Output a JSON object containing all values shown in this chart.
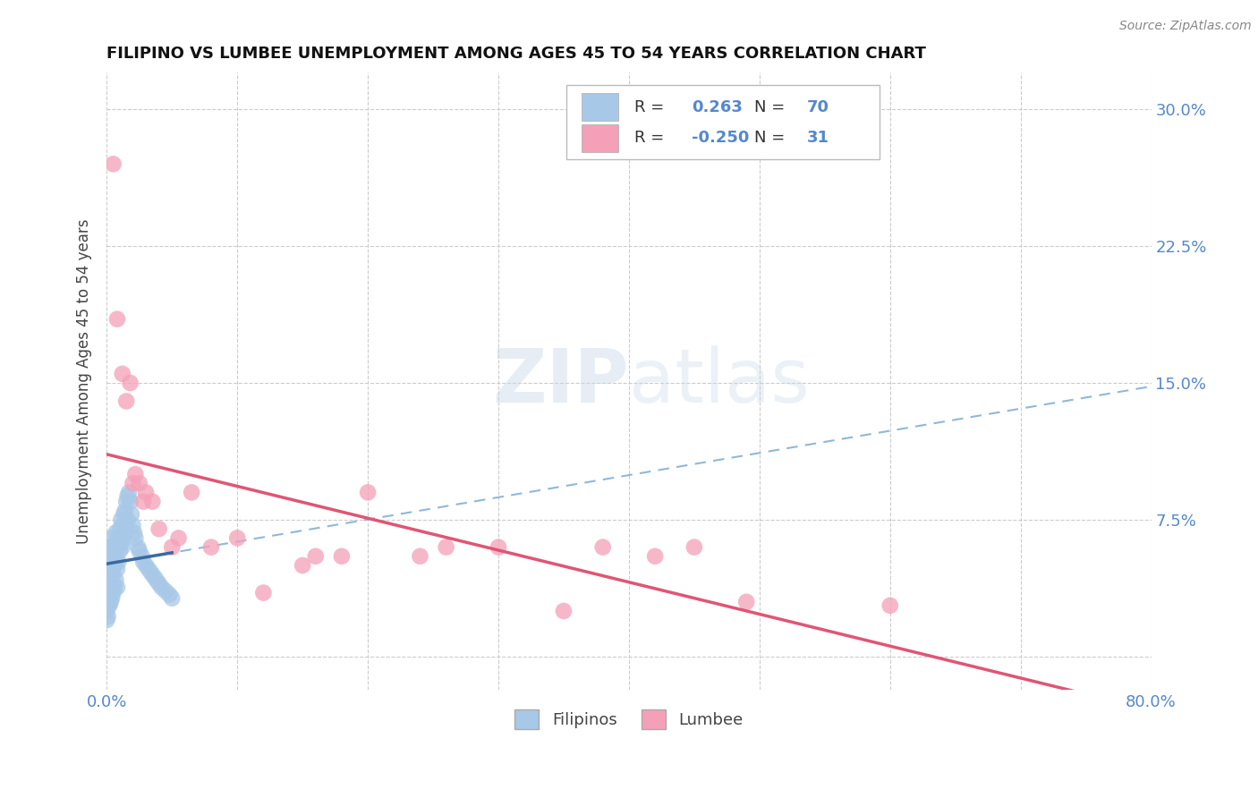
{
  "title": "FILIPINO VS LUMBEE UNEMPLOYMENT AMONG AGES 45 TO 54 YEARS CORRELATION CHART",
  "source": "Source: ZipAtlas.com",
  "ylabel": "Unemployment Among Ages 45 to 54 years",
  "xmin": 0.0,
  "xmax": 0.8,
  "ymin": -0.018,
  "ymax": 0.32,
  "grid_color": "#cccccc",
  "background_color": "#ffffff",
  "filipino_color": "#a8c8e8",
  "lumbee_color": "#f4a0b8",
  "filipino_line_color": "#3a6aa0",
  "lumbee_line_color": "#e05575",
  "trendline_filipino_color": "#90b8d8",
  "R_filipino": 0.263,
  "N_filipino": 70,
  "R_lumbee": -0.25,
  "N_lumbee": 31,
  "legend_label_filipino": "Filipinos",
  "legend_label_lumbee": "Lumbee",
  "watermark": "ZIPatlas",
  "filipino_x": [
    0.0,
    0.0,
    0.0,
    0.0,
    0.0,
    0.001,
    0.001,
    0.001,
    0.001,
    0.001,
    0.002,
    0.002,
    0.002,
    0.002,
    0.003,
    0.003,
    0.003,
    0.003,
    0.004,
    0.004,
    0.004,
    0.004,
    0.005,
    0.005,
    0.005,
    0.006,
    0.006,
    0.006,
    0.007,
    0.007,
    0.007,
    0.008,
    0.008,
    0.008,
    0.009,
    0.009,
    0.01,
    0.01,
    0.011,
    0.011,
    0.012,
    0.012,
    0.013,
    0.013,
    0.014,
    0.014,
    0.015,
    0.015,
    0.016,
    0.016,
    0.017,
    0.018,
    0.019,
    0.02,
    0.021,
    0.022,
    0.024,
    0.025,
    0.027,
    0.028,
    0.03,
    0.032,
    0.034,
    0.036,
    0.038,
    0.04,
    0.042,
    0.045,
    0.048,
    0.05
  ],
  "filipino_y": [
    0.03,
    0.025,
    0.04,
    0.035,
    0.02,
    0.045,
    0.05,
    0.038,
    0.028,
    0.022,
    0.055,
    0.042,
    0.035,
    0.028,
    0.06,
    0.048,
    0.038,
    0.03,
    0.065,
    0.052,
    0.04,
    0.032,
    0.058,
    0.045,
    0.035,
    0.062,
    0.05,
    0.038,
    0.068,
    0.055,
    0.042,
    0.06,
    0.048,
    0.038,
    0.065,
    0.052,
    0.07,
    0.058,
    0.075,
    0.062,
    0.072,
    0.06,
    0.078,
    0.065,
    0.08,
    0.068,
    0.085,
    0.072,
    0.088,
    0.075,
    0.09,
    0.085,
    0.078,
    0.072,
    0.068,
    0.065,
    0.06,
    0.058,
    0.055,
    0.052,
    0.05,
    0.048,
    0.046,
    0.044,
    0.042,
    0.04,
    0.038,
    0.036,
    0.034,
    0.032
  ],
  "lumbee_x": [
    0.005,
    0.008,
    0.012,
    0.015,
    0.018,
    0.02,
    0.022,
    0.025,
    0.028,
    0.03,
    0.035,
    0.04,
    0.05,
    0.055,
    0.065,
    0.08,
    0.1,
    0.12,
    0.15,
    0.16,
    0.18,
    0.2,
    0.24,
    0.26,
    0.3,
    0.35,
    0.38,
    0.42,
    0.45,
    0.49,
    0.6
  ],
  "lumbee_y": [
    0.27,
    0.185,
    0.155,
    0.14,
    0.15,
    0.095,
    0.1,
    0.095,
    0.085,
    0.09,
    0.085,
    0.07,
    0.06,
    0.065,
    0.09,
    0.06,
    0.065,
    0.035,
    0.05,
    0.055,
    0.055,
    0.09,
    0.055,
    0.06,
    0.06,
    0.025,
    0.06,
    0.055,
    0.06,
    0.03,
    0.028
  ]
}
